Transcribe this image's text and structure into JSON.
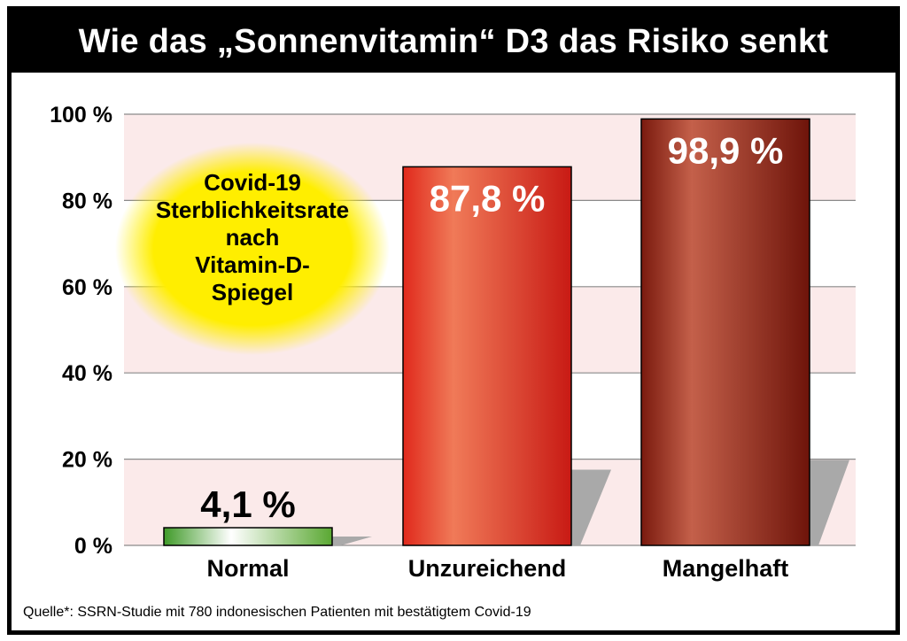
{
  "title": "Wie das „Sonnenvitamin“ D3 das Risiko senkt",
  "source": "Quelle*: SSRN-Studie mit 780 indonesischen Patienten mit bestätigtem Covid-19",
  "bubble_lines": [
    "Covid-19",
    "Sterblichkeitsrate",
    "nach",
    "Vitamin-D-",
    "Spiegel"
  ],
  "colors": {
    "background_band": "#fbeaea",
    "grid": "#8a8a8a",
    "normal_bar": "#5aa832",
    "unzureichend_bar": "#d42a20",
    "mangelhaft_bar": "#8a1e12",
    "bubble": "#ffee00",
    "shadow": "#a9a9a9"
  },
  "chart_data": {
    "type": "bar",
    "categories": [
      "Normal",
      "Unzureichend",
      "Mangelhaft"
    ],
    "values": [
      4.1,
      87.8,
      98.9
    ],
    "value_labels": [
      "4,1 %",
      "87,8 %",
      "98,9 %"
    ],
    "y_ticks": [
      "0 %",
      "20 %",
      "40 %",
      "60 %",
      "80 %",
      "100 %"
    ],
    "ylim": [
      0,
      100
    ],
    "grid": true
  }
}
